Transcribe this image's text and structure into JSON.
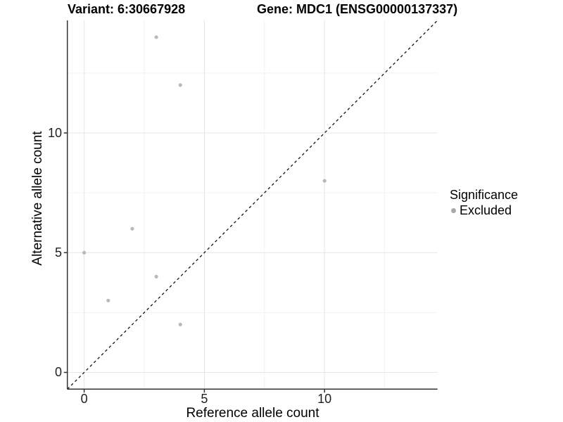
{
  "chart_data": {
    "type": "scatter",
    "title_left": "Variant: 6:30667928",
    "title_right": "Gene: MDC1 (ENSG00000137337)",
    "xlabel": "Reference allele count",
    "ylabel": "Alternative allele count",
    "xlim": [
      -0.7,
      14.7
    ],
    "ylim": [
      -0.7,
      14.7
    ],
    "xticks": [
      0,
      5,
      10
    ],
    "yticks": [
      0,
      5,
      10
    ],
    "x_minor_ticks": [
      2.5,
      7.5,
      12.5
    ],
    "y_minor_ticks": [
      2.5,
      7.5,
      12.5
    ],
    "grid": true,
    "identity_line": {
      "slope": 1,
      "intercept": 0,
      "style": "dashed",
      "color": "#111111"
    },
    "series": [
      {
        "name": "Excluded",
        "color": "#b9b9b9",
        "points": [
          [
            0,
            5
          ],
          [
            1,
            3
          ],
          [
            2,
            6
          ],
          [
            3,
            4
          ],
          [
            3,
            14
          ],
          [
            4,
            2
          ],
          [
            4,
            12
          ],
          [
            10,
            8
          ]
        ]
      }
    ],
    "legend": {
      "title": "Significance",
      "position": "right",
      "items": [
        {
          "label": "Excluded",
          "color": "#a9a9a9"
        }
      ]
    },
    "style_colors": {
      "axis_line": "#333333",
      "tick_mark": "#333333",
      "grid_major": "#e6e6e6",
      "grid_minor": "#f2f2f2",
      "background": "#ffffff"
    }
  }
}
